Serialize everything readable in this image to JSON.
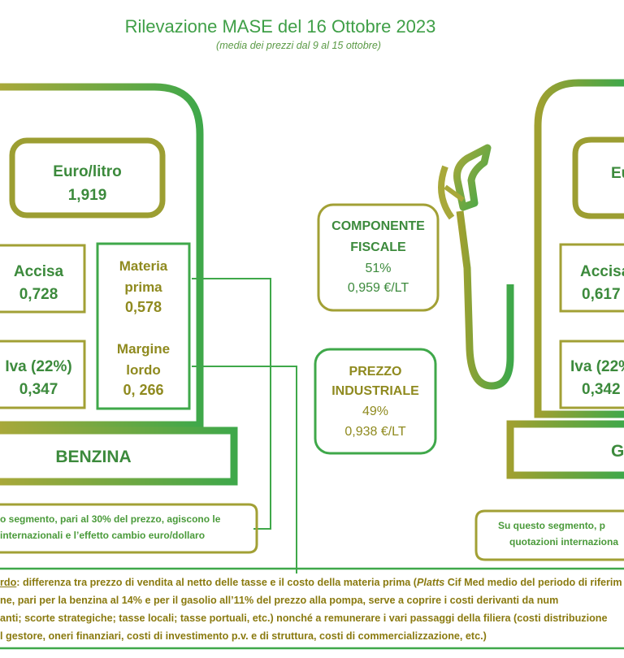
{
  "header": {
    "title": "Rilevazione MASE del 16 Ottobre 2023",
    "subtitle": "(media dei prezzi dal 9 al 15 ottobre)"
  },
  "benzina": {
    "price_label": "Euro/litro",
    "price_value": "1,919",
    "accisa_label": "Accisa",
    "accisa_value": "0,728",
    "iva_label": "Iva (22%)",
    "iva_value": "0,347",
    "materia_label_1": "Materia",
    "materia_label_2": "prima",
    "materia_value": "0,578",
    "margine_label_1": "Margine",
    "margine_label_2": "lordo",
    "margine_value": "0, 266",
    "name": "BENZINA",
    "note_line1": "o segmento, pari al 30% del prezzo, agiscono le",
    "note_line2": "internazionali e l’effetto cambio euro/dollaro"
  },
  "center": {
    "fiscale_line1": "COMPONENTE",
    "fiscale_line2": "FISCALE",
    "fiscale_pct": "51%",
    "fiscale_value": "0,959 €/LT",
    "industriale_line1": "PREZZO",
    "industriale_line2": "INDUSTRIALE",
    "industriale_pct": "49%",
    "industriale_value": "0,938 €/LT"
  },
  "gasolio": {
    "price_label": "Eu",
    "accisa_label": "Accisa",
    "accisa_value": "0,617",
    "iva_label": "Iva (22%",
    "iva_value": "0,342",
    "name": "G",
    "note_line1": "Su questo segmento, p",
    "note_line2": "quotazioni internaziona"
  },
  "footer": {
    "term": "rdo",
    "line1_rest": ": differenza tra prezzo di vendita al netto delle tasse e il costo della materia prima (",
    "platts": "Platts",
    "line1_tail": " Cif Med medio del periodo di riferim",
    "line2": "ne, pari per la benzina al 14% e per il gasolio all’11% del prezzo alla pompa, serve a coprire i costi derivanti da num",
    "line3": "anti; scorte strategiche; tasse locali; tasse portuali, etc.) nonché a remunerare i vari passaggi della filiera (costi distribuzione",
    "line4": "l gestore, oneri finanziari, costi di investimento p.v. e di struttura, costi di commercializzazione, etc.)"
  },
  "colors": {
    "green": "#3fa84a",
    "olive": "#9a9a2c",
    "dark_green": "#3c8a3c"
  }
}
